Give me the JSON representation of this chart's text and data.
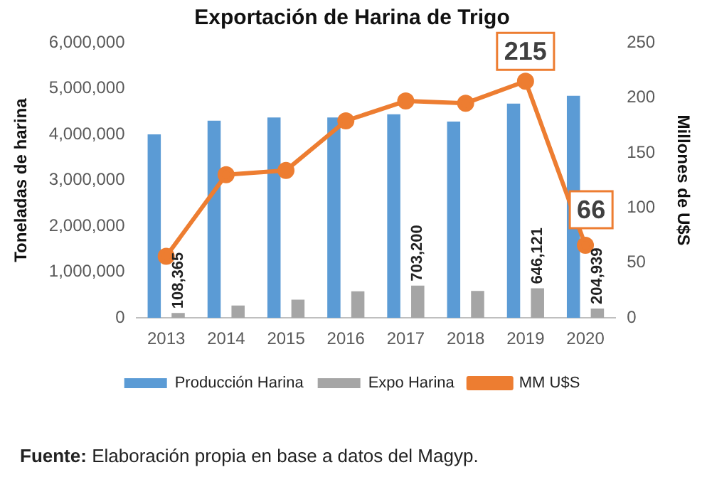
{
  "chart_data": {
    "type": "bar",
    "title": "Exportación de Harina de Trigo",
    "ylabel": "Toneladas de harina",
    "y2label": "Millones de U$S",
    "categories": [
      "2013",
      "2014",
      "2015",
      "2016",
      "2017",
      "2018",
      "2019",
      "2020"
    ],
    "series": [
      {
        "name": "Producción Harina",
        "color": "#5b9bd5",
        "values": [
          4000000,
          4300000,
          4370000,
          4370000,
          4440000,
          4280000,
          4670000,
          4840000
        ]
      },
      {
        "name": "Expo Harina",
        "color": "#a5a5a5",
        "values": [
          108365,
          270000,
          400000,
          580000,
          703200,
          590000,
          646121,
          204939
        ],
        "value_labels": [
          "108,365",
          null,
          null,
          null,
          "703,200",
          null,
          "646,121",
          "204,939"
        ]
      },
      {
        "name": "MM U$S",
        "type": "line",
        "axis": "y2",
        "color": "#ed7d31",
        "marker": "circle",
        "values": [
          56,
          130,
          134,
          179,
          197,
          195,
          215,
          66
        ],
        "value_labels": [
          null,
          null,
          null,
          null,
          null,
          null,
          "215",
          "66"
        ]
      }
    ],
    "ylim": [
      0,
      6000000
    ],
    "yticks": [
      {
        "value": 0,
        "label": "0"
      },
      {
        "value": 1000000,
        "label": "1,000,000"
      },
      {
        "value": 2000000,
        "label": "2,000,000"
      },
      {
        "value": 3000000,
        "label": "3,000,000"
      },
      {
        "value": 4000000,
        "label": "4,000,000"
      },
      {
        "value": 5000000,
        "label": "5,000,000"
      },
      {
        "value": 6000000,
        "label": "6,000,000"
      }
    ],
    "y2lim": [
      0,
      250
    ],
    "y2ticks": [
      0,
      50,
      100,
      150,
      200,
      250
    ],
    "grid": false,
    "legend": "bottom",
    "annotations": [
      "Fuente: Elaboración propia en base a datos del Magyp."
    ]
  }
}
